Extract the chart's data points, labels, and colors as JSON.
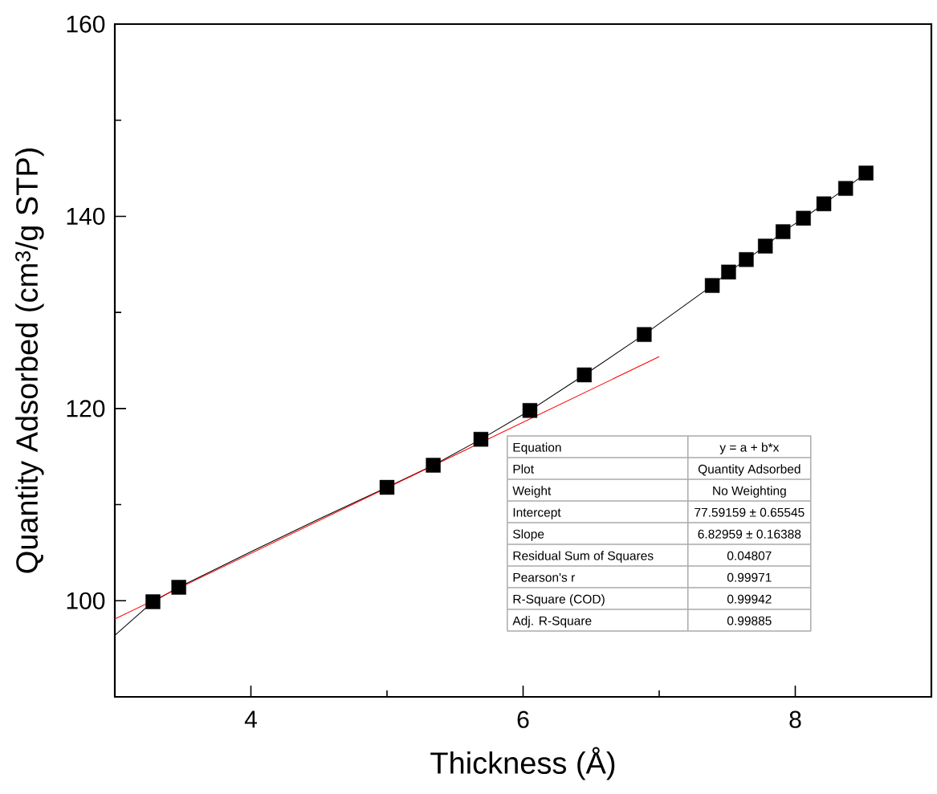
{
  "chart_data": {
    "type": "scatter",
    "xlabel": "Thickness (Å)",
    "ylabel": "Quantity Adsorbed (cm$^{3}$/g STP)",
    "xlim": [
      3,
      9
    ],
    "ylim": [
      90,
      160
    ],
    "xticks": [
      4,
      {
        "value": 5,
        "label": null
      },
      6,
      {
        "value": 7,
        "label": null
      },
      8
    ],
    "yticks": [
      100,
      {
        "value": 110,
        "label": null
      },
      120,
      {
        "value": 130,
        "label": null
      },
      140,
      {
        "value": 150,
        "label": null
      },
      160
    ],
    "series": [
      {
        "type": "line",
        "color": "#000000",
        "line_style": "solid",
        "marker": "none",
        "x": [
          3,
          3.28,
          3.47,
          4,
          4.5,
          5,
          5.34,
          5.69,
          6.05,
          6.45,
          6.89,
          7.39,
          7.51,
          7.64,
          7.78,
          7.91,
          8.06,
          8.21,
          8.37,
          8.52
        ],
        "values": [
          96.4,
          99.9,
          101.4,
          105.1,
          108.5,
          111.8,
          114.1,
          116.8,
          119.8,
          123.5,
          127.7,
          132.8,
          134.2,
          135.5,
          136.9,
          138.4,
          139.8,
          141.3,
          142.9,
          144.5
        ]
      },
      {
        "type": "line",
        "color": "#ff0000",
        "line_style": "solid",
        "marker": "none",
        "x": [
          3,
          7
        ],
        "values": [
          98.1,
          125.4
        ]
      },
      {
        "type": "scatter",
        "color": "#000000",
        "marker": "square",
        "x": [
          3.28,
          3.47,
          5,
          5.34,
          5.69,
          6.05,
          6.45,
          6.89,
          7.39,
          7.51,
          7.64,
          7.78,
          7.91,
          8.06,
          8.21,
          8.37,
          8.52
        ],
        "values": [
          99.9,
          101.4,
          111.8,
          114.1,
          116.8,
          119.8,
          123.5,
          127.7,
          132.8,
          134.2,
          135.5,
          136.9,
          138.4,
          139.8,
          141.3,
          142.9,
          144.5
        ]
      }
    ],
    "annotations": [
      "Equation",
      "y = a + b*x",
      "Plot",
      "Quantity Adsorbed",
      "Weight",
      "No Weighting",
      "Intercept",
      "77.59159 ± 0.65545",
      "Slope",
      "6.82959 ± 0.16388",
      "Residual Sum of Squares",
      "0.04807",
      "Pearson's r",
      "0.99971",
      "R-Square (COD)",
      "0.99942",
      "Adj. R-Square",
      "0.99885"
    ]
  }
}
